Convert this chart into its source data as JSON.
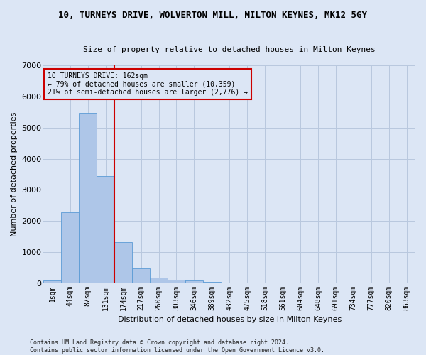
{
  "title": "10, TURNEYS DRIVE, WOLVERTON MILL, MILTON KEYNES, MK12 5GY",
  "subtitle": "Size of property relative to detached houses in Milton Keynes",
  "xlabel": "Distribution of detached houses by size in Milton Keynes",
  "ylabel": "Number of detached properties",
  "footer_line1": "Contains HM Land Registry data © Crown copyright and database right 2024.",
  "footer_line2": "Contains public sector information licensed under the Open Government Licence v3.0.",
  "annotation_line1": "10 TURNEYS DRIVE: 162sqm",
  "annotation_line2": "← 79% of detached houses are smaller (10,359)",
  "annotation_line3": "21% of semi-detached houses are larger (2,776) →",
  "bar_color": "#aec6e8",
  "bar_edge_color": "#5b9bd5",
  "vline_color": "#cc0000",
  "annotation_box_edge_color": "#cc0000",
  "bg_color": "#dce6f5",
  "grid_color": "#b8c8de",
  "categories": [
    "1sqm",
    "44sqm",
    "87sqm",
    "131sqm",
    "174sqm",
    "217sqm",
    "260sqm",
    "303sqm",
    "346sqm",
    "389sqm",
    "432sqm",
    "475sqm",
    "518sqm",
    "561sqm",
    "604sqm",
    "648sqm",
    "691sqm",
    "734sqm",
    "777sqm",
    "820sqm",
    "863sqm"
  ],
  "values": [
    75,
    2275,
    5475,
    3450,
    1310,
    470,
    165,
    100,
    75,
    45,
    0,
    0,
    0,
    0,
    0,
    0,
    0,
    0,
    0,
    0,
    0
  ],
  "ylim": [
    0,
    7000
  ],
  "vline_x": 3.5,
  "bar_width": 1.0,
  "figsize": [
    6.0,
    5.0
  ],
  "dpi": 100,
  "title_fontsize": 9,
  "subtitle_fontsize": 8,
  "ylabel_fontsize": 8,
  "xlabel_fontsize": 8,
  "tick_fontsize": 7,
  "annot_fontsize": 7,
  "footer_fontsize": 6
}
